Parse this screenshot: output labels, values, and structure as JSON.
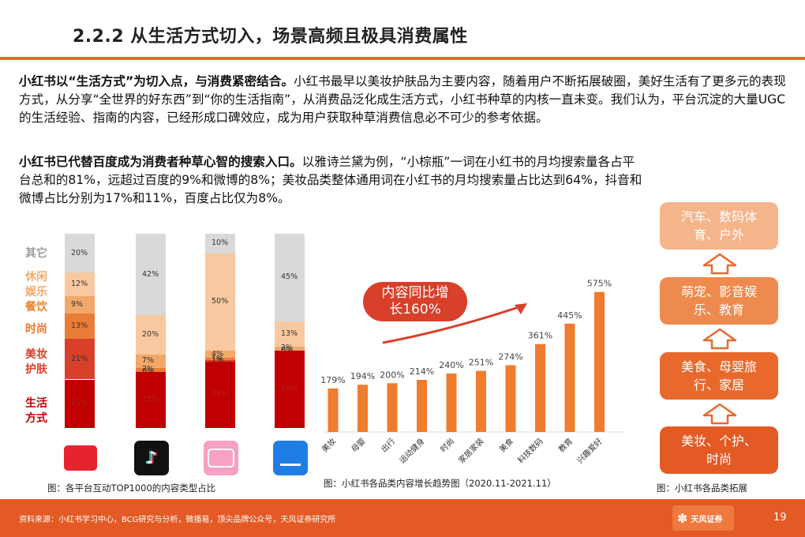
{
  "title": "2.2.2 从生活方式切入，场景高频且极具消费属性",
  "para1": {
    "lead": "小红书以“生活方式”为切入点，与消费紧密结合。",
    "rest": "小红书最早以美妆护肤品为主要内容，随着用户不断拓展破圈，美好生活有了更多元的表现方式，从分享“全世界的好东西”到“你的生活指南”，从消费品泛化成生活方式，小红书种草的内核一直未变。我们认为，平台沉淀的大量UGC的生活经验、指南的内容，已经形成口碑效应，成为用户获取种草消费信息必不可少的参考依据。"
  },
  "para2": {
    "lead": "小红书已代替百度成为消费者种草心智的搜索入口。",
    "rest": "以雅诗兰黛为例，“小棕瓶”一词在小红书的月均搜索量各占平台总和的81%，远超过百度的9%和微博的8%；美妆品类整体通用词在小红书的月均搜索量占比达到64%，抖音和微博占比分别为17%和11%，百度占比仅为8%。"
  },
  "stack_chart": {
    "categories": [
      {
        "text": "其它",
        "color": "#9e9e9e"
      },
      {
        "text": "休闲娱乐",
        "color": "#f4a96b"
      },
      {
        "text": "餐饮",
        "color": "#e8872f"
      },
      {
        "text": "时尚",
        "color": "#e8782a"
      },
      {
        "text": "美妆护肤",
        "color": "#d8402a"
      },
      {
        "text": "生活方式",
        "color": "#c00000"
      }
    ],
    "platforms": [
      {
        "name": "小红书",
        "segments": [
          {
            "v": 20,
            "label": "20%"
          },
          {
            "v": 12,
            "label": "12%"
          },
          {
            "v": 9,
            "label": "9%"
          },
          {
            "v": 13,
            "label": "13%"
          },
          {
            "v": 21,
            "label": "21%"
          },
          {
            "v": 25,
            "label": "25%"
          }
        ]
      },
      {
        "name": "抖音",
        "segments": [
          {
            "v": 42,
            "label": "42%"
          },
          {
            "v": 20,
            "label": "20%"
          },
          {
            "v": 7,
            "label": "7%"
          },
          {
            "v": 2,
            "label": "2%"
          },
          {
            "v": 0,
            "label": "0%"
          },
          {
            "v": 29,
            "label": "29%"
          }
        ]
      },
      {
        "name": "bilibili",
        "segments": [
          {
            "v": 10,
            "label": "10%"
          },
          {
            "v": 50,
            "label": "50%"
          },
          {
            "v": 4,
            "label": "4%"
          },
          {
            "v": 1,
            "label": "1%"
          },
          {
            "v": 1,
            "label": "1%"
          },
          {
            "v": 34,
            "label": "34%"
          }
        ]
      },
      {
        "name": "知乎",
        "segments": [
          {
            "v": 45,
            "label": "45%"
          },
          {
            "v": 13,
            "label": "13%"
          },
          {
            "v": 2,
            "label": "2%"
          },
          {
            "v": 0,
            "label": "0%"
          },
          {
            "v": 0,
            "label": "0%"
          },
          {
            "v": 40,
            "label": "40%"
          }
        ]
      }
    ],
    "seg_colors": [
      "#d9d9d9",
      "#f8c9a0",
      "#f3a86a",
      "#ea7d35",
      "#d8402a",
      "#c00000"
    ],
    "caption": "图：各平台互动TOP1000的内容类型占比"
  },
  "chart_data": {
    "type": "bar",
    "categories": [
      "美妆",
      "母婴",
      "出行",
      "运动健身",
      "时尚",
      "家居家装",
      "美食",
      "科技数码",
      "教育",
      "兴趣爱好"
    ],
    "values": [
      179,
      194,
      200,
      214,
      240,
      251,
      274,
      361,
      445,
      575
    ],
    "data_labels": [
      "179%",
      "194%",
      "200%",
      "214%",
      "240%",
      "251%",
      "274%",
      "361%",
      "445%",
      "575%"
    ],
    "ylim": [
      0,
      600
    ],
    "bar_color": "#f07c2e",
    "callout": "内容同比增长160%",
    "caption": "图：小红书各品类内容增长趋势图（2020.11-2021.11）"
  },
  "ladder": {
    "items": [
      "汽车、数码体育、户外",
      "萌宠、影音娱乐、教育",
      "美食、母婴旅行、家居",
      "美妆、个护、时尚"
    ],
    "colors": [
      "#f5b58b",
      "#ee8a4d",
      "#e8692b",
      "#e35a25"
    ],
    "caption": "图：小红书各品类拓展"
  },
  "footer": {
    "source": "资料来源：小红书学习中心，BCG研究与分析，微播易，顶尖品牌公众号，天风证券研究所",
    "page": "19",
    "brand": "天风证券"
  }
}
